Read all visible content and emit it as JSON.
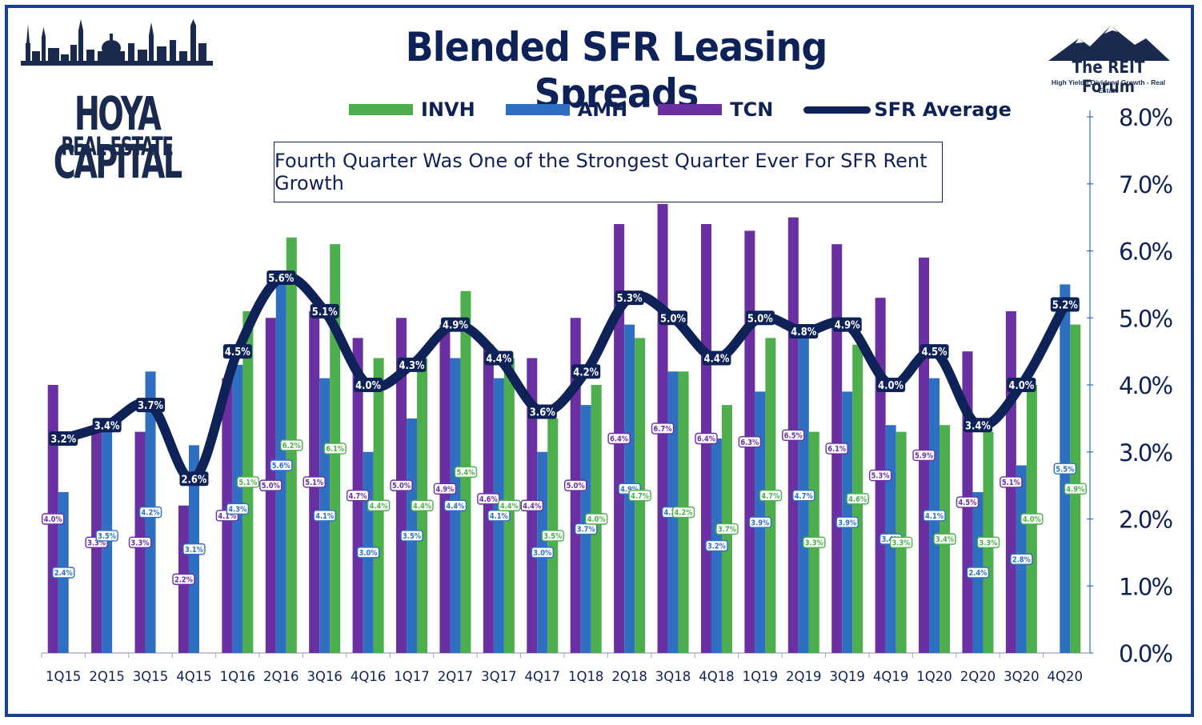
{
  "title": "Blended SFR Leasing Spreads",
  "annotation": "Fourth Quarter Was One of the Strongest Quarter Ever For SFR Rent Growth",
  "logo_left": {
    "line1": "HOYA CAPITAL",
    "line2": "REAL ESTATE"
  },
  "logo_right": {
    "line1": "The REIT Forum",
    "line2": "High Yield - Dividend Growth - Real Estate"
  },
  "legend": [
    {
      "label": "INVH",
      "color": "#4cae4c"
    },
    {
      "label": "AMH",
      "color": "#2e6fc2"
    },
    {
      "label": "TCN",
      "color": "#6a2fa0"
    },
    {
      "label": "SFR Average",
      "color": "#0f2257"
    }
  ],
  "chart_data": {
    "type": "bar",
    "title": "Blended SFR Leasing Spreads",
    "categories": [
      "1Q15",
      "2Q15",
      "3Q15",
      "4Q15",
      "1Q16",
      "2Q16",
      "3Q16",
      "4Q16",
      "1Q17",
      "2Q17",
      "3Q17",
      "4Q17",
      "1Q18",
      "2Q18",
      "3Q18",
      "4Q18",
      "1Q19",
      "2Q19",
      "3Q19",
      "4Q19",
      "1Q20",
      "2Q20",
      "3Q20",
      "4Q20"
    ],
    "y_axis": {
      "min": 0,
      "max": 8,
      "ticks": [
        "0.0%",
        "1.0%",
        "2.0%",
        "3.0%",
        "4.0%",
        "5.0%",
        "6.0%",
        "7.0%",
        "8.0%"
      ],
      "position": "right"
    },
    "series": [
      {
        "name": "TCN",
        "type": "bar",
        "color": "#6a2fa0",
        "values": [
          4.0,
          3.3,
          3.3,
          2.2,
          4.1,
          5.0,
          5.1,
          4.7,
          5.0,
          4.9,
          4.6,
          4.4,
          5.0,
          6.4,
          6.7,
          6.4,
          6.3,
          6.5,
          6.1,
          5.3,
          5.9,
          4.5,
          5.1,
          null
        ],
        "labels": [
          "4.0%",
          "3.3%",
          "3.3%",
          "2.2%",
          "4.1%",
          "5.0%",
          "5.1%",
          "4.7%",
          "5.0%",
          "4.9%",
          "4.6%",
          "4.4%",
          "5.0%",
          "6.4%",
          "6.7%",
          "6.4%",
          "6.3%",
          "6.5%",
          "6.1%",
          "5.3%",
          "5.9%",
          "4.5%",
          "5.1%",
          ""
        ]
      },
      {
        "name": "AMH",
        "type": "bar",
        "color": "#2e6fc2",
        "values": [
          2.4,
          3.5,
          4.2,
          3.1,
          4.3,
          5.6,
          4.1,
          3.0,
          3.5,
          4.4,
          4.1,
          3.0,
          3.7,
          4.9,
          4.2,
          3.2,
          3.9,
          4.7,
          3.9,
          3.4,
          4.1,
          2.4,
          2.8,
          5.5
        ],
        "labels": [
          "2.4%",
          "3.5%",
          "4.2%",
          "3.1%",
          "4.3%",
          "5.6%",
          "4.1%",
          "3.0%",
          "3.5%",
          "4.4%",
          "4.1%",
          "3.0%",
          "3.7%",
          "4.9%",
          "4.2%",
          "3.2%",
          "3.9%",
          "4.7%",
          "3.9%",
          "3.4%",
          "4.1%",
          "2.4%",
          "2.8%",
          "5.5%"
        ]
      },
      {
        "name": "INVH",
        "type": "bar",
        "color": "#4cae4c",
        "values": [
          null,
          null,
          null,
          null,
          5.1,
          6.2,
          6.1,
          4.4,
          4.4,
          5.4,
          4.4,
          3.5,
          4.0,
          4.7,
          4.2,
          3.7,
          4.7,
          3.3,
          4.6,
          3.3,
          3.4,
          3.3,
          4.0,
          4.9
        ],
        "labels": [
          "",
          "",
          "",
          "",
          "5.1%",
          "6.2%",
          "6.1%",
          "4.4%",
          "4.4%",
          "5.4%",
          "4.4%",
          "3.5%",
          "4.0%",
          "4.7%",
          "4.2%",
          "3.7%",
          "4.7%",
          "3.3%",
          "4.6%",
          "3.3%",
          "3.4%",
          "3.3%",
          "4.0%",
          "4.9%"
        ]
      },
      {
        "name": "SFR Average",
        "type": "line",
        "color": "#0f2257",
        "values": [
          3.2,
          3.4,
          3.7,
          2.6,
          4.5,
          5.6,
          5.1,
          4.0,
          4.3,
          4.9,
          4.4,
          3.6,
          4.2,
          5.3,
          5.0,
          4.4,
          5.0,
          4.8,
          4.9,
          4.0,
          4.5,
          3.4,
          4.0,
          5.2
        ],
        "labels": [
          "3.2%",
          "3.4%",
          "3.7%",
          "2.6%",
          "4.5%",
          "5.6%",
          "5.1%",
          "4.0%",
          "4.3%",
          "4.9%",
          "4.4%",
          "3.6%",
          "4.2%",
          "5.3%",
          "5.0%",
          "4.4%",
          "5.0%",
          "4.8%",
          "4.9%",
          "4.0%",
          "4.5%",
          "3.4%",
          "4.0%",
          "5.2%"
        ]
      }
    ]
  }
}
